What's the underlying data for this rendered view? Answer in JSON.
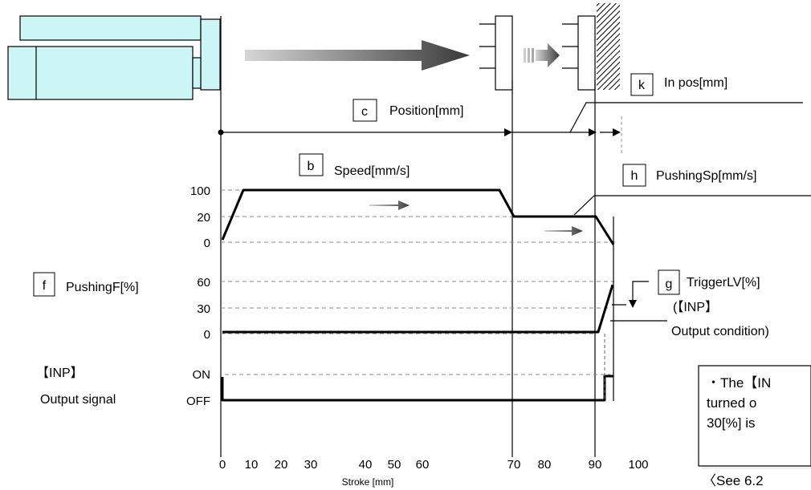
{
  "labels": {
    "position": {
      "letter": "c",
      "text": "Position[mm]"
    },
    "speed": {
      "letter": "b",
      "text": "Speed[mm/s]"
    },
    "in_pos": {
      "letter": "k",
      "text": "In pos[mm]"
    },
    "pushing_sp": {
      "letter": "h",
      "text": "PushingSp[mm/s]"
    },
    "pushing_f": {
      "letter": "f",
      "text": "PushingF[%]"
    },
    "trigger_lv": {
      "letter": "g",
      "text": "TriggerLV[%]"
    }
  },
  "inp_condition": {
    "line1": "(【INP】",
    "line2": "Output condition)"
  },
  "inp_signal": {
    "line1": "【INP】",
    "line2": "Output signal"
  },
  "speed_ticks": [
    "100",
    "20",
    "0"
  ],
  "force_ticks": [
    "60",
    "30",
    "0"
  ],
  "signal_ticks": [
    "ON",
    "OFF"
  ],
  "stroke_ticks": [
    "0",
    "10",
    "20",
    "30",
    "40",
    "50",
    "60",
    "70",
    "80",
    "90",
    "100"
  ],
  "stroke_label": "Stroke [mm]",
  "note": {
    "line1": "・The【IN",
    "line2": "turned o",
    "line3": "30[%] is"
  },
  "see_ref": "〈See 6.2"
}
